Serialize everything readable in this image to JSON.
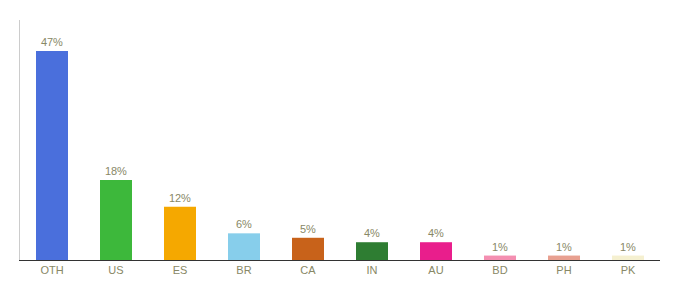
{
  "chart_data": {
    "type": "bar",
    "categories": [
      "OTH",
      "US",
      "ES",
      "BR",
      "CA",
      "IN",
      "AU",
      "BD",
      "PH",
      "PK"
    ],
    "values": [
      47,
      18,
      12,
      6,
      5,
      4,
      4,
      1,
      1,
      1
    ],
    "value_labels": [
      "47%",
      "18%",
      "12%",
      "6%",
      "5%",
      "4%",
      "4%",
      "1%",
      "1%",
      "1%"
    ],
    "colors": [
      "#4a6fdc",
      "#3db83b",
      "#f5a800",
      "#87ceeb",
      "#c8621a",
      "#2e7d32",
      "#e91e8c",
      "#f48fb1",
      "#e8a090",
      "#f5f0d0"
    ],
    "ylim": [
      0,
      54
    ],
    "data_labels": true,
    "tick_labels": "x",
    "grid": false
  }
}
